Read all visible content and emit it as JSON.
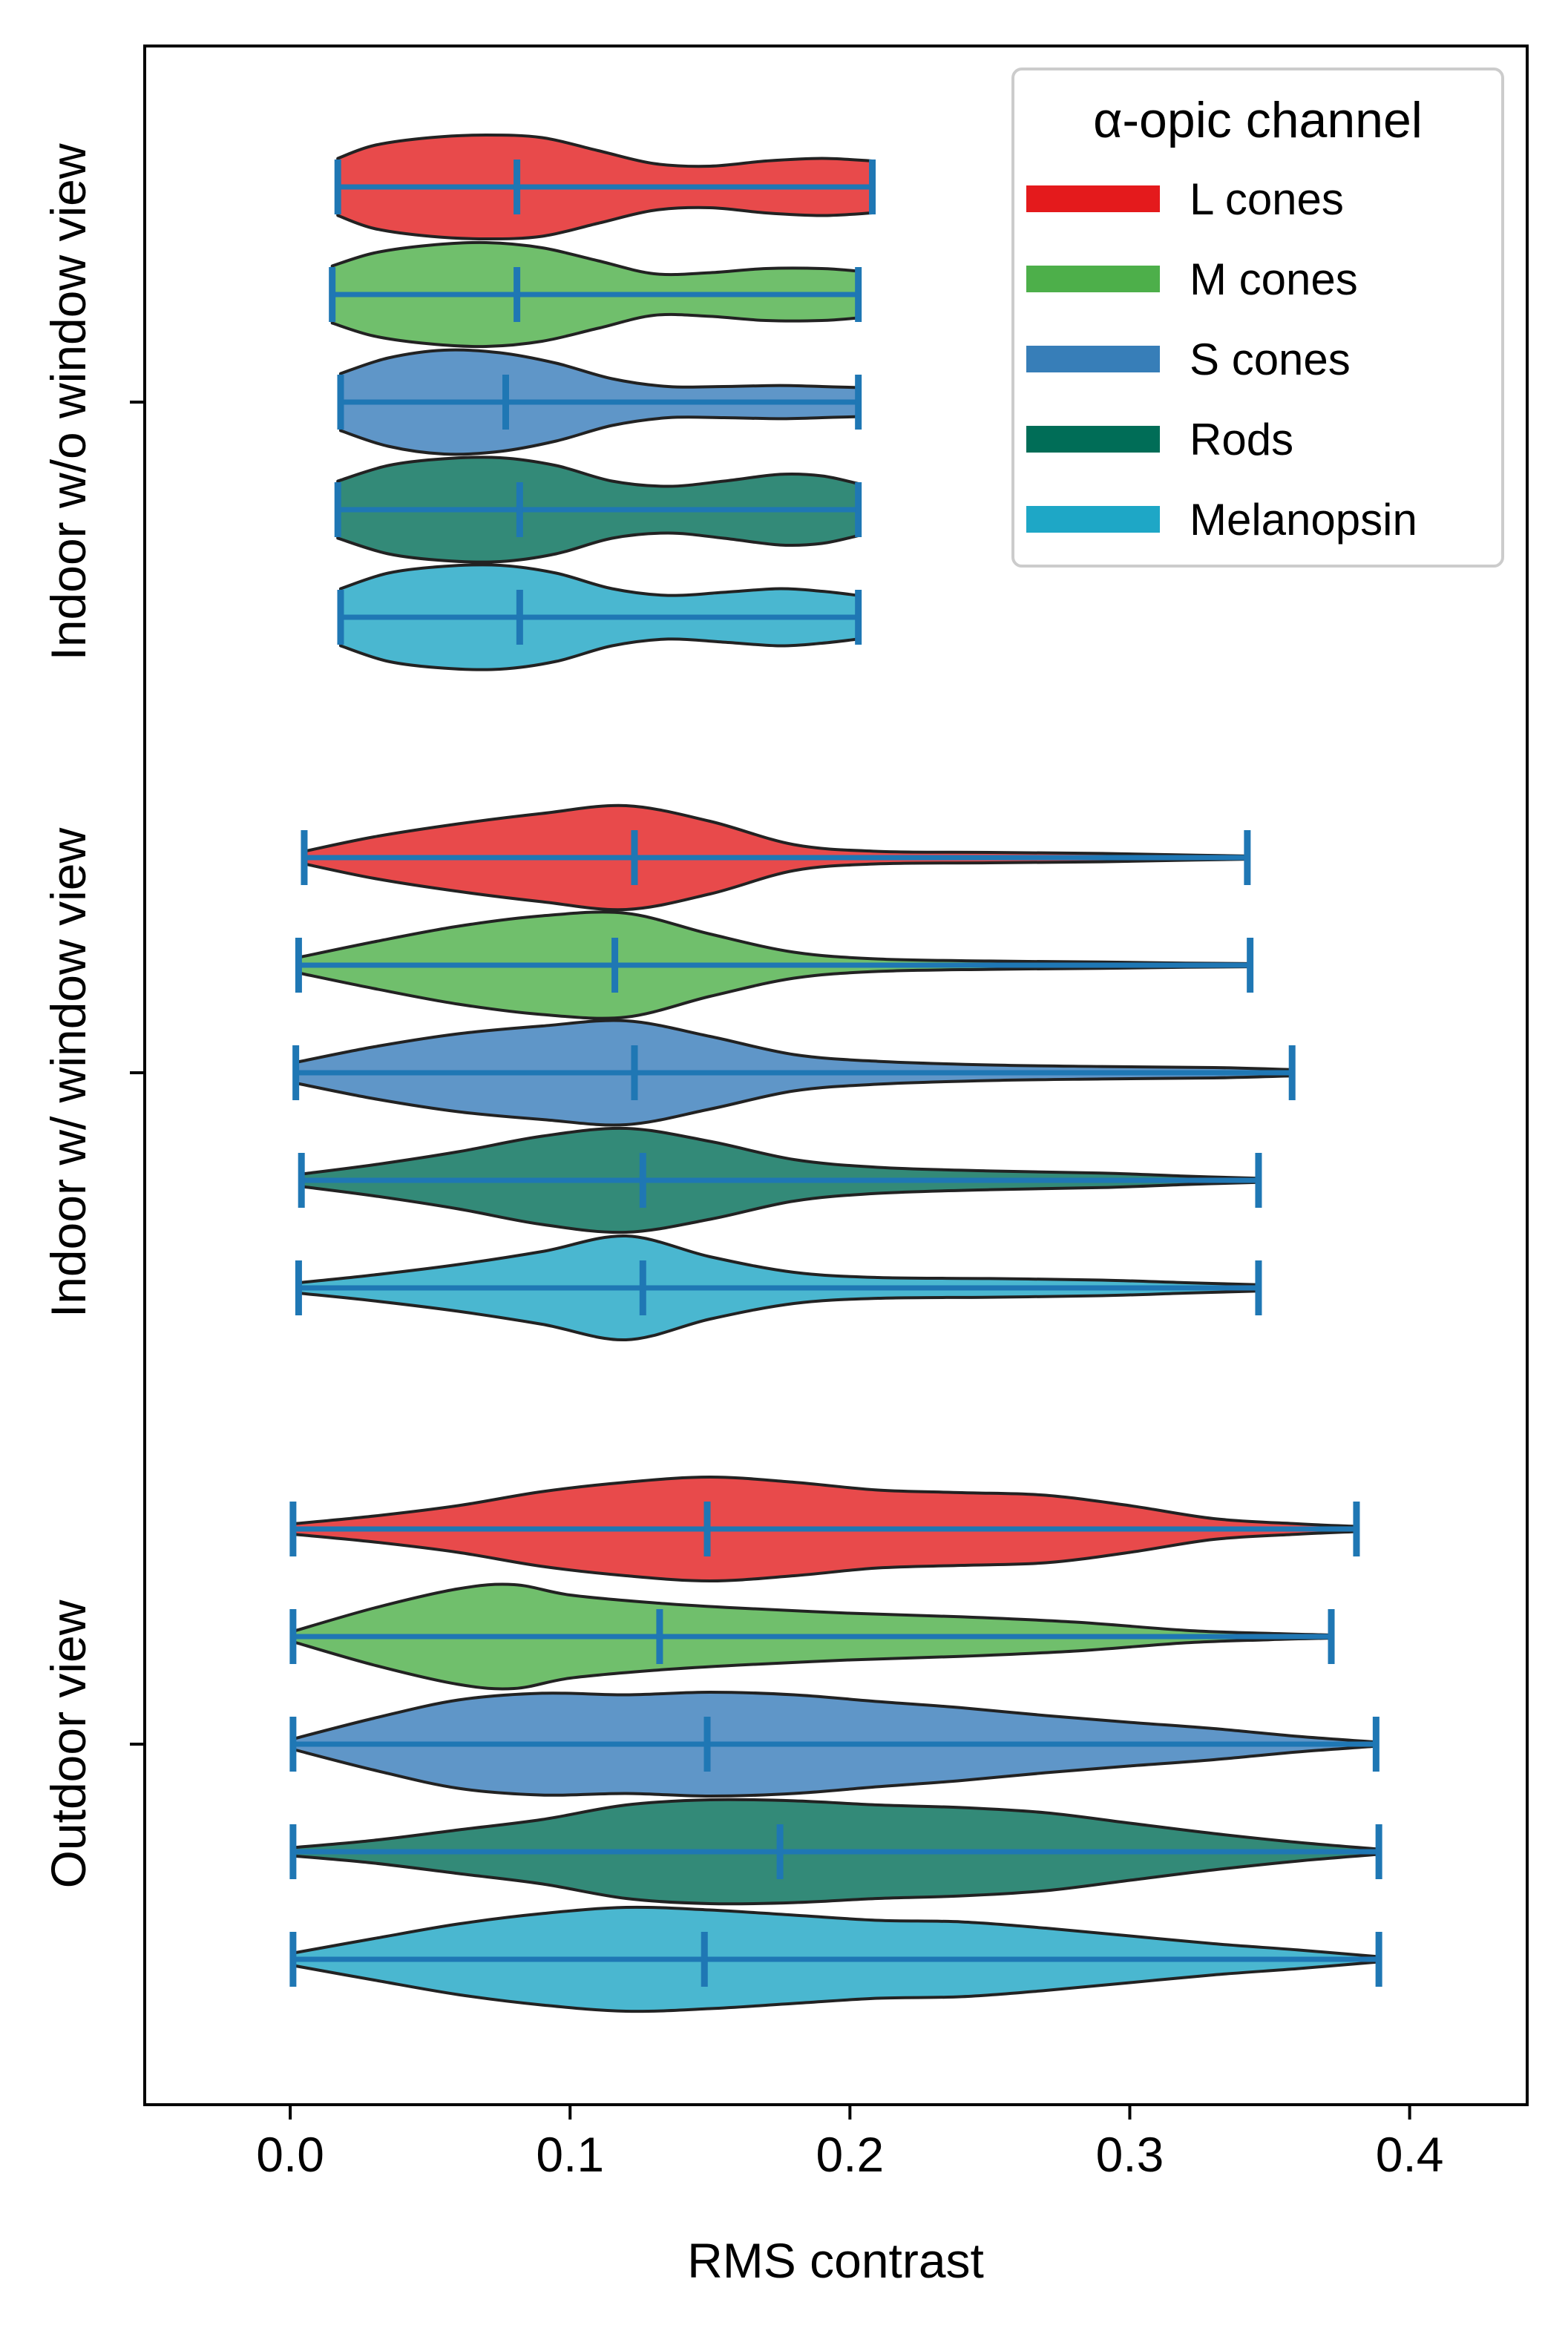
{
  "chart_data": {
    "type": "violin",
    "orientation": "horizontal",
    "xlabel": "RMS contrast",
    "ylabel": "",
    "xlim": [
      -0.052,
      0.442
    ],
    "xticks": [
      0.0,
      0.1,
      0.2,
      0.3,
      0.4
    ],
    "xtick_labels": [
      "0.0",
      "0.1",
      "0.2",
      "0.3",
      "0.4"
    ],
    "groups": [
      "Indoor w/o window view",
      "Indoor w/ window view",
      "Outdoor view"
    ],
    "legend": {
      "title": "α-opic channel",
      "placement": "top-right",
      "entries": [
        {
          "label": "L cones",
          "color": "#e41a1c"
        },
        {
          "label": "M cones",
          "color": "#4daf4a"
        },
        {
          "label": "S cones",
          "color": "#377eb8"
        },
        {
          "label": "Rods",
          "color": "#006d57"
        },
        {
          "label": "Melanopsin",
          "color": "#1ea7c6"
        }
      ]
    },
    "fill_colors": {
      "L cones": "#e84a4b",
      "M cones": "#70bf6c",
      "S cones": "#5f96c8",
      "Rods": "#338a78",
      "Melanopsin": "#4ab7d0"
    },
    "line_color": "#1f77b4",
    "outline_color": "#222222",
    "series": [
      {
        "group": "Indoor w/o window view",
        "violins": [
          {
            "channel": "L cones",
            "min": 0.017,
            "median": 0.081,
            "max": 0.208,
            "profile": [
              [
                0.017,
                0.55
              ],
              [
                0.03,
                0.8
              ],
              [
                0.05,
                0.95
              ],
              [
                0.07,
                1.0
              ],
              [
                0.09,
                0.95
              ],
              [
                0.11,
                0.7
              ],
              [
                0.13,
                0.45
              ],
              [
                0.15,
                0.4
              ],
              [
                0.17,
                0.5
              ],
              [
                0.19,
                0.55
              ],
              [
                0.208,
                0.5
              ]
            ]
          },
          {
            "channel": "M cones",
            "min": 0.015,
            "median": 0.081,
            "max": 0.203,
            "profile": [
              [
                0.015,
                0.55
              ],
              [
                0.03,
                0.8
              ],
              [
                0.05,
                0.95
              ],
              [
                0.07,
                1.0
              ],
              [
                0.09,
                0.9
              ],
              [
                0.11,
                0.65
              ],
              [
                0.13,
                0.4
              ],
              [
                0.15,
                0.42
              ],
              [
                0.17,
                0.5
              ],
              [
                0.19,
                0.5
              ],
              [
                0.203,
                0.45
              ]
            ]
          },
          {
            "channel": "S cones",
            "min": 0.018,
            "median": 0.077,
            "max": 0.203,
            "profile": [
              [
                0.018,
                0.55
              ],
              [
                0.035,
                0.85
              ],
              [
                0.055,
                1.0
              ],
              [
                0.075,
                0.95
              ],
              [
                0.095,
                0.75
              ],
              [
                0.115,
                0.45
              ],
              [
                0.135,
                0.3
              ],
              [
                0.155,
                0.3
              ],
              [
                0.175,
                0.32
              ],
              [
                0.19,
                0.3
              ],
              [
                0.203,
                0.28
              ]
            ]
          },
          {
            "channel": "Rods",
            "min": 0.017,
            "median": 0.082,
            "max": 0.203,
            "profile": [
              [
                0.017,
                0.55
              ],
              [
                0.035,
                0.85
              ],
              [
                0.055,
                0.98
              ],
              [
                0.075,
                1.0
              ],
              [
                0.095,
                0.85
              ],
              [
                0.115,
                0.55
              ],
              [
                0.135,
                0.45
              ],
              [
                0.155,
                0.55
              ],
              [
                0.175,
                0.68
              ],
              [
                0.19,
                0.65
              ],
              [
                0.203,
                0.5
              ]
            ]
          },
          {
            "channel": "Melanopsin",
            "min": 0.018,
            "median": 0.082,
            "max": 0.203,
            "profile": [
              [
                0.018,
                0.55
              ],
              [
                0.035,
                0.85
              ],
              [
                0.055,
                0.98
              ],
              [
                0.075,
                1.0
              ],
              [
                0.095,
                0.85
              ],
              [
                0.115,
                0.55
              ],
              [
                0.135,
                0.42
              ],
              [
                0.155,
                0.48
              ],
              [
                0.175,
                0.55
              ],
              [
                0.19,
                0.5
              ],
              [
                0.203,
                0.42
              ]
            ]
          }
        ]
      },
      {
        "group": "Indoor w/ window view",
        "violins": [
          {
            "channel": "L cones",
            "min": 0.005,
            "median": 0.123,
            "max": 0.342,
            "profile": [
              [
                0.005,
                0.12
              ],
              [
                0.03,
                0.4
              ],
              [
                0.06,
                0.65
              ],
              [
                0.09,
                0.85
              ],
              [
                0.12,
                1.0
              ],
              [
                0.15,
                0.7
              ],
              [
                0.18,
                0.25
              ],
              [
                0.21,
                0.12
              ],
              [
                0.25,
                0.1
              ],
              [
                0.29,
                0.08
              ],
              [
                0.32,
                0.05
              ],
              [
                0.342,
                0.03
              ]
            ]
          },
          {
            "channel": "M cones",
            "min": 0.003,
            "median": 0.116,
            "max": 0.343,
            "profile": [
              [
                0.003,
                0.15
              ],
              [
                0.03,
                0.45
              ],
              [
                0.06,
                0.75
              ],
              [
                0.09,
                0.95
              ],
              [
                0.12,
                1.0
              ],
              [
                0.15,
                0.6
              ],
              [
                0.18,
                0.25
              ],
              [
                0.21,
                0.12
              ],
              [
                0.25,
                0.08
              ],
              [
                0.29,
                0.06
              ],
              [
                0.32,
                0.04
              ],
              [
                0.343,
                0.03
              ]
            ]
          },
          {
            "channel": "S cones",
            "min": 0.002,
            "median": 0.123,
            "max": 0.358,
            "profile": [
              [
                0.002,
                0.2
              ],
              [
                0.03,
                0.5
              ],
              [
                0.06,
                0.75
              ],
              [
                0.09,
                0.9
              ],
              [
                0.12,
                1.0
              ],
              [
                0.15,
                0.7
              ],
              [
                0.18,
                0.35
              ],
              [
                0.21,
                0.22
              ],
              [
                0.25,
                0.15
              ],
              [
                0.29,
                0.12
              ],
              [
                0.33,
                0.1
              ],
              [
                0.358,
                0.06
              ]
            ]
          },
          {
            "channel": "Rods",
            "min": 0.004,
            "median": 0.126,
            "max": 0.346,
            "profile": [
              [
                0.004,
                0.12
              ],
              [
                0.03,
                0.3
              ],
              [
                0.06,
                0.55
              ],
              [
                0.09,
                0.85
              ],
              [
                0.12,
                1.0
              ],
              [
                0.15,
                0.75
              ],
              [
                0.18,
                0.4
              ],
              [
                0.21,
                0.25
              ],
              [
                0.25,
                0.18
              ],
              [
                0.29,
                0.14
              ],
              [
                0.32,
                0.08
              ],
              [
                0.346,
                0.04
              ]
            ]
          },
          {
            "channel": "Melanopsin",
            "min": 0.003,
            "median": 0.126,
            "max": 0.346,
            "profile": [
              [
                0.003,
                0.1
              ],
              [
                0.03,
                0.25
              ],
              [
                0.06,
                0.45
              ],
              [
                0.09,
                0.7
              ],
              [
                0.12,
                1.0
              ],
              [
                0.15,
                0.6
              ],
              [
                0.18,
                0.3
              ],
              [
                0.21,
                0.2
              ],
              [
                0.25,
                0.18
              ],
              [
                0.29,
                0.15
              ],
              [
                0.32,
                0.1
              ],
              [
                0.346,
                0.06
              ]
            ]
          }
        ]
      },
      {
        "group": "Outdoor view",
        "violins": [
          {
            "channel": "L cones",
            "min": 0.001,
            "median": 0.149,
            "max": 0.381,
            "profile": [
              [
                0.001,
                0.1
              ],
              [
                0.03,
                0.25
              ],
              [
                0.06,
                0.45
              ],
              [
                0.09,
                0.72
              ],
              [
                0.12,
                0.9
              ],
              [
                0.15,
                1.0
              ],
              [
                0.18,
                0.9
              ],
              [
                0.21,
                0.75
              ],
              [
                0.24,
                0.7
              ],
              [
                0.27,
                0.65
              ],
              [
                0.3,
                0.45
              ],
              [
                0.33,
                0.2
              ],
              [
                0.36,
                0.1
              ],
              [
                0.381,
                0.05
              ]
            ]
          },
          {
            "channel": "M cones",
            "min": 0.001,
            "median": 0.132,
            "max": 0.372,
            "profile": [
              [
                0.001,
                0.1
              ],
              [
                0.03,
                0.55
              ],
              [
                0.06,
                0.92
              ],
              [
                0.08,
                1.0
              ],
              [
                0.1,
                0.8
              ],
              [
                0.13,
                0.65
              ],
              [
                0.16,
                0.55
              ],
              [
                0.2,
                0.45
              ],
              [
                0.24,
                0.38
              ],
              [
                0.28,
                0.28
              ],
              [
                0.32,
                0.12
              ],
              [
                0.35,
                0.06
              ],
              [
                0.372,
                0.03
              ]
            ]
          },
          {
            "channel": "S cones",
            "min": 0.001,
            "median": 0.149,
            "max": 0.388,
            "profile": [
              [
                0.001,
                0.1
              ],
              [
                0.03,
                0.5
              ],
              [
                0.06,
                0.85
              ],
              [
                0.09,
                0.98
              ],
              [
                0.12,
                0.95
              ],
              [
                0.15,
                1.0
              ],
              [
                0.18,
                0.95
              ],
              [
                0.21,
                0.82
              ],
              [
                0.24,
                0.7
              ],
              [
                0.27,
                0.55
              ],
              [
                0.3,
                0.42
              ],
              [
                0.33,
                0.3
              ],
              [
                0.36,
                0.15
              ],
              [
                0.388,
                0.04
              ]
            ]
          },
          {
            "channel": "Rods",
            "min": 0.001,
            "median": 0.175,
            "max": 0.389,
            "profile": [
              [
                0.001,
                0.08
              ],
              [
                0.03,
                0.22
              ],
              [
                0.06,
                0.42
              ],
              [
                0.09,
                0.62
              ],
              [
                0.12,
                0.9
              ],
              [
                0.15,
                1.0
              ],
              [
                0.18,
                0.98
              ],
              [
                0.21,
                0.9
              ],
              [
                0.24,
                0.85
              ],
              [
                0.27,
                0.75
              ],
              [
                0.3,
                0.55
              ],
              [
                0.33,
                0.35
              ],
              [
                0.36,
                0.18
              ],
              [
                0.389,
                0.05
              ]
            ]
          },
          {
            "channel": "Melanopsin",
            "min": 0.001,
            "median": 0.148,
            "max": 0.389,
            "profile": [
              [
                0.001,
                0.12
              ],
              [
                0.03,
                0.4
              ],
              [
                0.06,
                0.68
              ],
              [
                0.09,
                0.88
              ],
              [
                0.12,
                1.0
              ],
              [
                0.15,
                0.95
              ],
              [
                0.18,
                0.85
              ],
              [
                0.21,
                0.75
              ],
              [
                0.24,
                0.72
              ],
              [
                0.27,
                0.6
              ],
              [
                0.3,
                0.45
              ],
              [
                0.33,
                0.3
              ],
              [
                0.36,
                0.18
              ],
              [
                0.389,
                0.05
              ]
            ]
          }
        ]
      }
    ]
  }
}
